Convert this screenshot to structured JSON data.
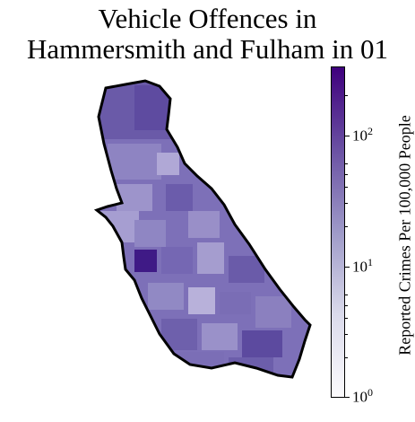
{
  "title_line1": "Vehicle Offences in",
  "title_line2": "Hammersmith and Fulham in 01",
  "colorbar": {
    "label": "Reported Crimes Per 100,000 People",
    "scale": "log",
    "range": [
      1,
      300
    ],
    "ticks": [
      {
        "base": "10",
        "exp": "0"
      },
      {
        "base": "10",
        "exp": "1"
      },
      {
        "base": "10",
        "exp": "2"
      }
    ],
    "colors": {
      "low": "#fcfbfd",
      "mid": "#9e9ac8",
      "high": "#3f007d"
    }
  },
  "map": {
    "fill_color": "#7d70b8",
    "border_color": "#000000"
  }
}
